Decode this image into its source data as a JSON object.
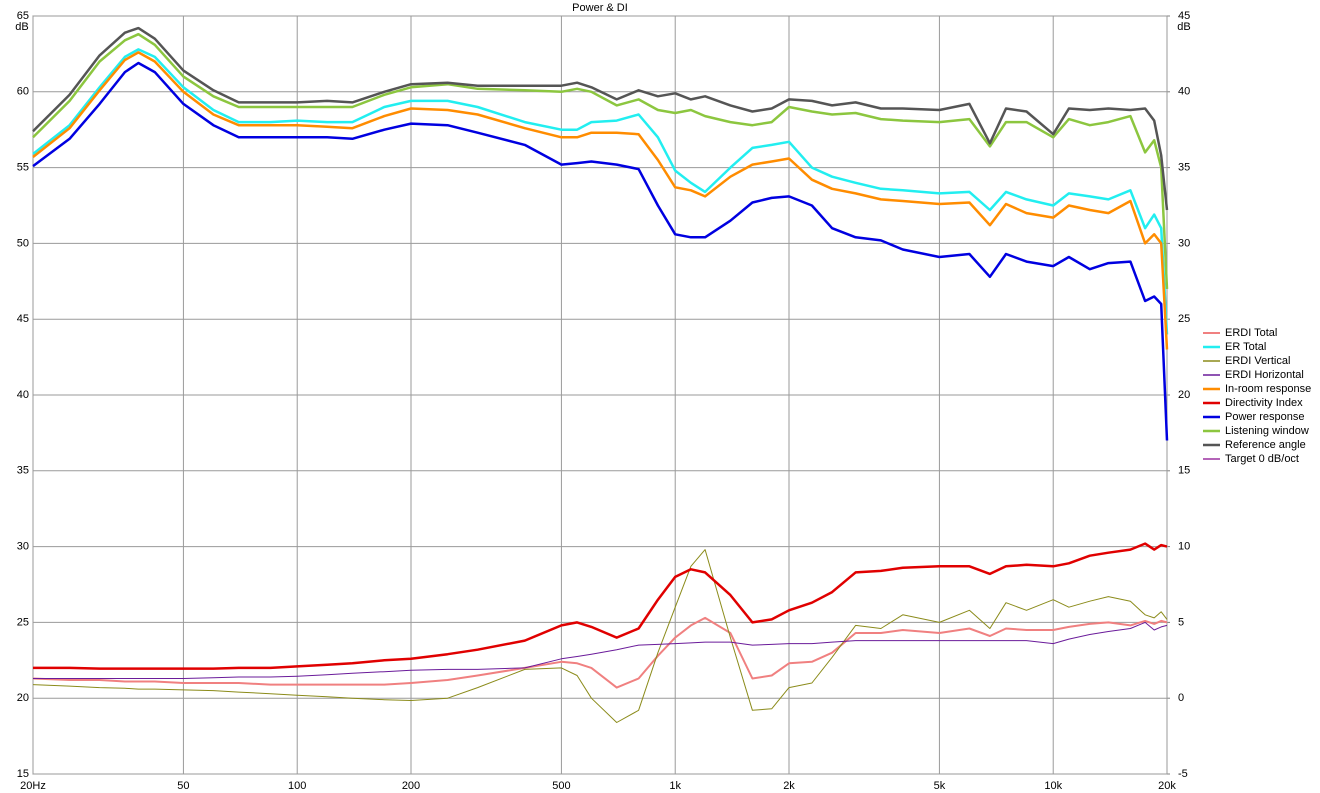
{
  "chart_data": {
    "type": "line",
    "title": "Power & DI",
    "y_label": "dB",
    "y2_label": "dB",
    "xscale": "log",
    "xlim": [
      20,
      20000
    ],
    "xticks": [
      {
        "value": 20,
        "label": "20Hz"
      },
      50,
      100,
      200,
      500,
      {
        "value": 1000,
        "label": "1k"
      },
      {
        "value": 2000,
        "label": "2k"
      },
      {
        "value": 5000,
        "label": "5k"
      },
      {
        "value": 10000,
        "label": "10k"
      },
      {
        "value": 20000,
        "label": "20k"
      }
    ],
    "ylim": [
      15,
      65
    ],
    "yticks": [
      15,
      20,
      25,
      30,
      35,
      40,
      45,
      50,
      55,
      60,
      65
    ],
    "y2lim": [
      -5,
      45
    ],
    "y2ticks": [
      -5,
      0,
      5,
      10,
      15,
      20,
      25,
      30,
      35,
      40,
      45
    ],
    "grid": true,
    "legend": "right",
    "x": [
      20,
      25,
      30,
      35,
      38,
      42,
      50,
      60,
      70,
      85,
      100,
      120,
      140,
      170,
      200,
      250,
      300,
      400,
      500,
      550,
      600,
      700,
      800,
      900,
      1000,
      1100,
      1200,
      1400,
      1600,
      1800,
      2000,
      2300,
      2600,
      3000,
      3500,
      4000,
      5000,
      6000,
      6800,
      7500,
      8500,
      10000,
      11000,
      12500,
      14000,
      16000,
      17500,
      18500,
      19300,
      20000
    ],
    "series": [
      {
        "name": "ERDI Total",
        "color": "#f08080",
        "width": 2,
        "axis": "y2",
        "values": [
          1.3,
          1.2,
          1.2,
          1.1,
          1.1,
          1.1,
          1.0,
          1.0,
          1.0,
          0.9,
          0.9,
          0.9,
          0.9,
          0.9,
          1.0,
          1.2,
          1.5,
          2.0,
          2.4,
          2.3,
          2.0,
          0.7,
          1.3,
          2.8,
          4.0,
          4.8,
          5.3,
          4.3,
          1.3,
          1.5,
          2.3,
          2.4,
          3.0,
          4.3,
          4.3,
          4.5,
          4.3,
          4.6,
          4.1,
          4.6,
          4.5,
          4.5,
          4.7,
          4.9,
          5.0,
          4.8,
          5.1,
          4.9,
          5.1,
          5.0
        ]
      },
      {
        "name": "ER Total",
        "color": "#22eef0",
        "width": 2.5,
        "values": [
          55.9,
          57.8,
          60.3,
          62.3,
          62.8,
          62.3,
          60.3,
          58.8,
          58.0,
          58.0,
          58.1,
          58.0,
          58.0,
          59.0,
          59.4,
          59.4,
          59.0,
          58.0,
          57.5,
          57.5,
          58.0,
          58.1,
          58.5,
          57.0,
          54.8,
          54.0,
          53.4,
          55.0,
          56.3,
          56.5,
          56.7,
          55.0,
          54.4,
          54.0,
          53.6,
          53.5,
          53.3,
          53.4,
          52.2,
          53.4,
          52.9,
          52.5,
          53.3,
          53.1,
          52.9,
          53.5,
          51.0,
          51.9,
          51.0,
          44.0
        ]
      },
      {
        "name": "ERDI Vertical",
        "color": "#8b8b1a",
        "width": 1,
        "axis": "y2",
        "values": [
          0.9,
          0.8,
          0.7,
          0.65,
          0.6,
          0.6,
          0.55,
          0.5,
          0.4,
          0.3,
          0.2,
          0.1,
          0.0,
          -0.1,
          -0.15,
          0.0,
          0.7,
          1.9,
          2.0,
          1.5,
          0.0,
          -1.6,
          -0.8,
          3.0,
          6.0,
          8.7,
          9.8,
          4.0,
          -0.8,
          -0.7,
          0.7,
          1.0,
          2.7,
          4.8,
          4.6,
          5.5,
          5.0,
          5.8,
          4.6,
          6.3,
          5.8,
          6.5,
          6.0,
          6.4,
          6.7,
          6.4,
          5.5,
          5.3,
          5.7,
          5.2
        ]
      },
      {
        "name": "ERDI Horizontal",
        "color": "#6a1b9a",
        "width": 1,
        "axis": "y2",
        "values": [
          1.3,
          1.3,
          1.3,
          1.3,
          1.3,
          1.3,
          1.3,
          1.35,
          1.4,
          1.4,
          1.45,
          1.55,
          1.65,
          1.75,
          1.85,
          1.9,
          1.9,
          2.0,
          2.6,
          2.75,
          2.9,
          3.2,
          3.5,
          3.55,
          3.6,
          3.65,
          3.7,
          3.7,
          3.5,
          3.55,
          3.6,
          3.6,
          3.7,
          3.8,
          3.8,
          3.8,
          3.8,
          3.8,
          3.8,
          3.8,
          3.8,
          3.6,
          3.9,
          4.2,
          4.4,
          4.6,
          5.0,
          4.5,
          4.7,
          4.8
        ]
      },
      {
        "name": "In-room response",
        "color": "#ff8c00",
        "width": 2.5,
        "values": [
          55.7,
          57.6,
          60.1,
          62.1,
          62.6,
          62.0,
          60.0,
          58.5,
          57.8,
          57.8,
          57.8,
          57.7,
          57.6,
          58.4,
          58.9,
          58.8,
          58.5,
          57.6,
          57.0,
          57.0,
          57.3,
          57.3,
          57.2,
          55.5,
          53.7,
          53.5,
          53.1,
          54.4,
          55.2,
          55.4,
          55.6,
          54.2,
          53.6,
          53.3,
          52.9,
          52.8,
          52.6,
          52.7,
          51.2,
          52.6,
          52.0,
          51.7,
          52.5,
          52.2,
          52.0,
          52.8,
          50.0,
          50.6,
          50.0,
          43.0
        ]
      },
      {
        "name": "Directivity Index",
        "color": "#e00000",
        "width": 2.5,
        "axis": "y2",
        "values": [
          2.0,
          2.0,
          1.95,
          1.95,
          1.95,
          1.95,
          1.95,
          1.95,
          2.0,
          2.0,
          2.1,
          2.2,
          2.3,
          2.5,
          2.6,
          2.9,
          3.2,
          3.8,
          4.8,
          5.0,
          4.7,
          4.0,
          4.6,
          6.5,
          8.0,
          8.5,
          8.3,
          6.8,
          5.0,
          5.2,
          5.8,
          6.3,
          7.0,
          8.3,
          8.4,
          8.6,
          8.7,
          8.7,
          8.2,
          8.7,
          8.8,
          8.7,
          8.9,
          9.4,
          9.6,
          9.8,
          10.2,
          9.8,
          10.1,
          10.0
        ]
      },
      {
        "name": "Power response",
        "color": "#0000e0",
        "width": 2.5,
        "values": [
          55.1,
          56.9,
          59.2,
          61.3,
          61.9,
          61.3,
          59.2,
          57.8,
          57.0,
          57.0,
          57.0,
          57.0,
          56.9,
          57.5,
          57.9,
          57.8,
          57.3,
          56.5,
          55.2,
          55.3,
          55.4,
          55.2,
          54.9,
          52.5,
          50.6,
          50.4,
          50.4,
          51.5,
          52.7,
          53.0,
          53.1,
          52.5,
          51.0,
          50.4,
          50.2,
          49.6,
          49.1,
          49.3,
          47.8,
          49.3,
          48.8,
          48.5,
          49.1,
          48.3,
          48.7,
          48.8,
          46.2,
          46.5,
          46.0,
          37.0
        ]
      },
      {
        "name": "Listening window",
        "color": "#8cc63f",
        "width": 2.5,
        "values": [
          57.0,
          59.4,
          62.0,
          63.4,
          63.8,
          63.1,
          61.0,
          59.7,
          59.0,
          59.0,
          59.0,
          59.0,
          59.0,
          59.8,
          60.3,
          60.5,
          60.2,
          60.1,
          60.0,
          60.2,
          60.0,
          59.1,
          59.5,
          58.8,
          58.6,
          58.8,
          58.4,
          58.0,
          57.8,
          58.0,
          59.0,
          58.7,
          58.5,
          58.6,
          58.2,
          58.1,
          58.0,
          58.2,
          56.4,
          58.0,
          58.0,
          57.0,
          58.2,
          57.8,
          58.0,
          58.4,
          56.0,
          56.8,
          55.0,
          47.0
        ]
      },
      {
        "name": "Reference angle",
        "color": "#555555",
        "width": 2.5,
        "values": [
          57.4,
          59.8,
          62.4,
          63.9,
          64.2,
          63.5,
          61.4,
          60.1,
          59.3,
          59.3,
          59.3,
          59.4,
          59.3,
          60.0,
          60.5,
          60.6,
          60.4,
          60.4,
          60.4,
          60.6,
          60.3,
          59.5,
          60.1,
          59.7,
          59.9,
          59.5,
          59.7,
          59.1,
          58.7,
          58.9,
          59.5,
          59.4,
          59.1,
          59.3,
          58.9,
          58.9,
          58.8,
          59.2,
          56.6,
          58.9,
          58.7,
          57.2,
          58.9,
          58.8,
          58.9,
          58.8,
          58.9,
          58.1,
          55.8,
          52.2
        ]
      },
      {
        "name": "Target 0 dB/oct",
        "color": "#9b30a0",
        "width": 1
      }
    ]
  }
}
